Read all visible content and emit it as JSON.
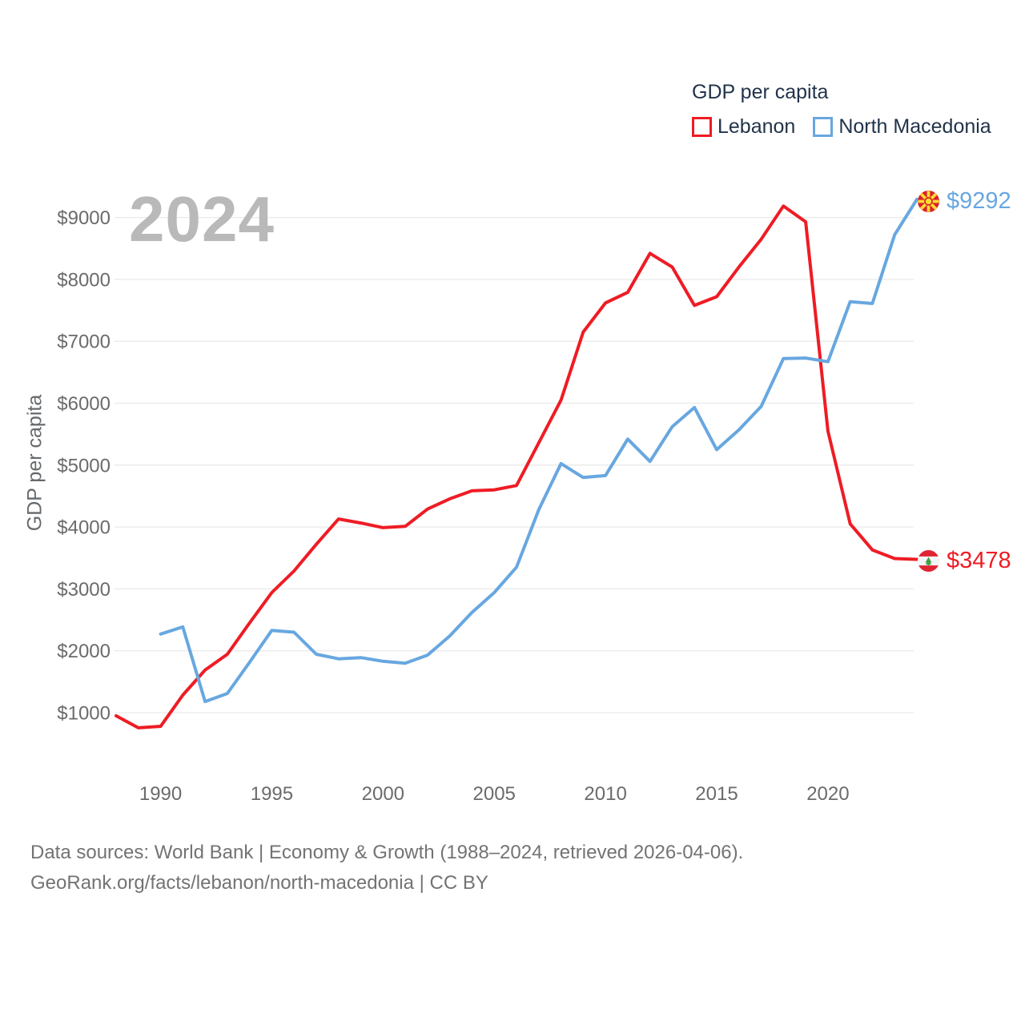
{
  "watermark": "2024",
  "legend": {
    "title": "GDP per capita",
    "items": [
      {
        "label": "Lebanon",
        "color": "#ee1c25"
      },
      {
        "label": "North Macedonia",
        "color": "#68a7e0"
      }
    ]
  },
  "footer": {
    "line1": "Data sources: World Bank | Economy & Growth (1988–2024, retrieved 2026-04-06).",
    "line2": "GeoRank.org/facts/lebanon/north-macedonia | CC BY"
  },
  "colors": {
    "lebanon_line": "#ee1c25",
    "north_macedonia_line": "#68a7e0",
    "grid": "#eaeaea",
    "axis_text": "#6b6b6b",
    "dark_text": "#22334a",
    "watermark": "#b9b9b9"
  },
  "chart_data": {
    "type": "line",
    "title": "GDP per capita",
    "ylabel": "GDP per capita",
    "xlabel": "",
    "grid": "horizontal",
    "legend_position": "top-right",
    "x_range": [
      1988,
      2024
    ],
    "y_range": [
      0,
      9500
    ],
    "x_ticks": [
      {
        "value": 1990,
        "label": "1990"
      },
      {
        "value": 1995,
        "label": "1995"
      },
      {
        "value": 2000,
        "label": "2000"
      },
      {
        "value": 2005,
        "label": "2005"
      },
      {
        "value": 2010,
        "label": "2010"
      },
      {
        "value": 2015,
        "label": "2015"
      },
      {
        "value": 2020,
        "label": "2020"
      }
    ],
    "y_ticks": [
      {
        "value": 1000,
        "label": "$1000"
      },
      {
        "value": 2000,
        "label": "$2000"
      },
      {
        "value": 3000,
        "label": "$3000"
      },
      {
        "value": 4000,
        "label": "$4000"
      },
      {
        "value": 5000,
        "label": "$5000"
      },
      {
        "value": 6000,
        "label": "$6000"
      },
      {
        "value": 7000,
        "label": "$7000"
      },
      {
        "value": 8000,
        "label": "$8000"
      },
      {
        "value": 9000,
        "label": "$9000"
      }
    ],
    "series": [
      {
        "name": "Lebanon",
        "color": "#ee1c25",
        "start_year": 1988,
        "values": [
          950,
          755,
          780,
          1285,
          1690,
          1945,
          2450,
          2940,
          3290,
          3720,
          4130,
          4065,
          3990,
          4010,
          4290,
          4455,
          4585,
          4600,
          4670,
          5360,
          6050,
          7150,
          7620,
          7790,
          8420,
          8200,
          7580,
          7720,
          8200,
          8650,
          9185,
          8930,
          5550,
          4050,
          3630,
          3490,
          3478
        ]
      },
      {
        "name": "North Macedonia",
        "color": "#68a7e0",
        "start_year": 1990,
        "values": [
          2270,
          2385,
          1180,
          1310,
          1815,
          2330,
          2300,
          1945,
          1870,
          1890,
          1830,
          1800,
          1930,
          2240,
          2620,
          2940,
          3350,
          4280,
          5025,
          4800,
          4830,
          5420,
          5060,
          5620,
          5930,
          5250,
          5570,
          5950,
          6720,
          6730,
          6670,
          7640,
          7610,
          8720,
          9292
        ]
      }
    ],
    "end_labels": [
      {
        "series": "North Macedonia",
        "text": "$9292",
        "flag": "north-macedonia"
      },
      {
        "series": "Lebanon",
        "text": "$3478",
        "flag": "lebanon"
      }
    ]
  }
}
